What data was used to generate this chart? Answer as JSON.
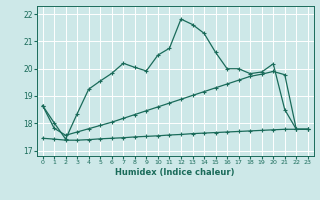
{
  "xlabel": "Humidex (Indice chaleur)",
  "ylabel_ticks": [
    17,
    18,
    19,
    20,
    21,
    22
  ],
  "xtick_labels": [
    "0",
    "1",
    "2",
    "3",
    "4",
    "5",
    "6",
    "7",
    "8",
    "9",
    "10",
    "11",
    "12",
    "13",
    "14",
    "15",
    "16",
    "17",
    "18",
    "19",
    "20",
    "21",
    "22",
    "23"
  ],
  "xlim": [
    -0.5,
    23.5
  ],
  "ylim": [
    16.8,
    22.3
  ],
  "bg_color": "#cde8e8",
  "grid_color": "#ffffff",
  "line_color": "#1a6b5a",
  "line1_y": [
    18.65,
    18.02,
    17.42,
    18.35,
    19.25,
    19.55,
    19.83,
    20.2,
    20.05,
    19.92,
    20.5,
    20.75,
    21.82,
    21.62,
    21.3,
    20.6,
    20.0,
    20.0,
    19.82,
    19.88,
    20.18,
    18.5,
    17.78,
    17.78
  ],
  "line2_y": [
    18.65,
    17.82,
    17.56,
    17.68,
    17.8,
    17.92,
    18.04,
    18.18,
    18.32,
    18.46,
    18.6,
    18.74,
    18.88,
    19.02,
    19.16,
    19.3,
    19.44,
    19.58,
    19.72,
    19.8,
    19.9,
    19.78,
    17.78,
    17.78
  ],
  "line3_y": [
    17.45,
    17.42,
    17.38,
    17.38,
    17.4,
    17.43,
    17.45,
    17.47,
    17.5,
    17.52,
    17.54,
    17.57,
    17.59,
    17.62,
    17.64,
    17.66,
    17.68,
    17.7,
    17.72,
    17.74,
    17.76,
    17.78,
    17.78,
    17.78
  ]
}
